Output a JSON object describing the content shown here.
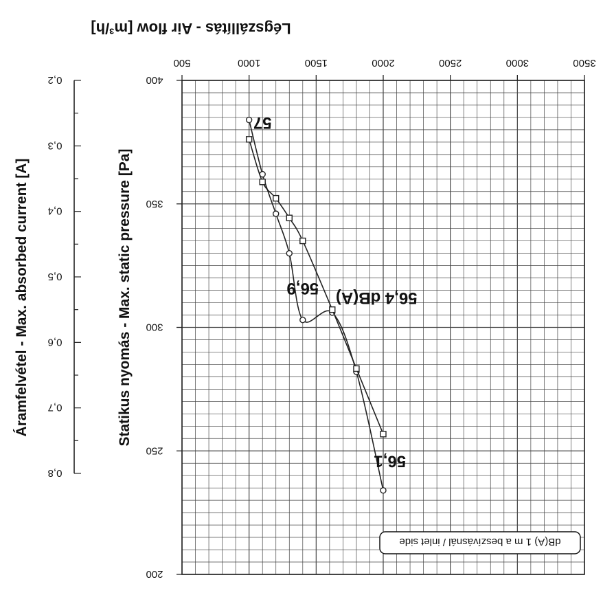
{
  "chart_data": {
    "type": "line",
    "title": "Légszállítás - Air flow [m³/h]",
    "y_left_label": "Statikus nyomás - Max. static pressure [Pa]",
    "y_right_label": "Áramfelvétel - Max. absorbed current [A]",
    "x_ticks": [
      "500",
      "1000",
      "1500",
      "2000",
      "2500",
      "3000",
      "3500"
    ],
    "x_range": [
      500,
      3500
    ],
    "pressure_ticks": [
      "200",
      "250",
      "300",
      "350",
      "400"
    ],
    "pressure_range": [
      200,
      400
    ],
    "current_ticks": [
      "0,2",
      "0,3",
      "0,4",
      "0,5",
      "0,6",
      "0,7",
      "0,8"
    ],
    "current_range": [
      0.2,
      0.8
    ],
    "grid": true,
    "series": [
      {
        "name": "pressure",
        "axis": "pressure",
        "marker": "circle",
        "x": [
          1000,
          1100,
          1200,
          1300,
          1400,
          1620,
          1800,
          2000
        ],
        "y": [
          384,
          362,
          346,
          330,
          303,
          306,
          282,
          234
        ]
      },
      {
        "name": "current",
        "axis": "current",
        "marker": "square",
        "x": [
          1000,
          1100,
          1200,
          1300,
          1400,
          1620,
          1800,
          2000
        ],
        "y": [
          0.29,
          0.355,
          0.38,
          0.41,
          0.445,
          0.55,
          0.64,
          0.74
        ]
      }
    ],
    "annotations": [
      {
        "text": "57",
        "x": 1100,
        "y": 385
      },
      {
        "text": "56,9",
        "x": 1400,
        "y": 318
      },
      {
        "text": "56,4 dB(A)",
        "x": 1950,
        "y": 314
      },
      {
        "text": "56,1",
        "x": 2050,
        "y": 248
      }
    ],
    "legend_note": "dB(A) 1 m a beszívásnál / inlet side",
    "colors": {
      "line": "#222222",
      "grid": "#444444",
      "text": "#111111"
    }
  }
}
